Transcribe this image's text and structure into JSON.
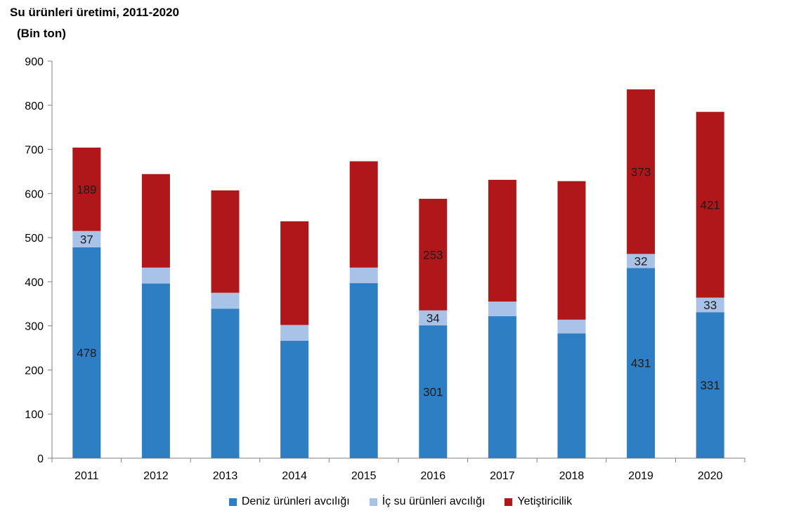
{
  "header": {
    "title": "Su ürünleri üretimi, 2011-2020",
    "subtitle": "(Bin ton)"
  },
  "chart_data": {
    "type": "bar",
    "stacked": true,
    "categories": [
      "2011",
      "2012",
      "2013",
      "2014",
      "2015",
      "2016",
      "2017",
      "2018",
      "2019",
      "2020"
    ],
    "series": [
      {
        "name": "Deniz ürünleri avcılığı",
        "color": "#2e7ec4",
        "values": [
          478,
          396,
          339,
          266,
          397,
          301,
          322,
          283,
          431,
          331
        ],
        "labels": [
          "478",
          "",
          "",
          "",
          "",
          "301",
          "",
          "",
          "431",
          "331"
        ]
      },
      {
        "name": "İç su ürünleri avcılığı",
        "color": "#a9c3e8",
        "values": [
          37,
          36,
          36,
          36,
          35,
          34,
          33,
          31,
          32,
          33
        ],
        "labels": [
          "37",
          "",
          "",
          "",
          "",
          "34",
          "",
          "",
          "32",
          "33"
        ]
      },
      {
        "name": "Yetiştiricilik",
        "color": "#b0171b",
        "values": [
          189,
          212,
          232,
          235,
          241,
          253,
          276,
          314,
          373,
          421
        ],
        "labels": [
          "189",
          "",
          "",
          "",
          "",
          "253",
          "",
          "",
          "373",
          "421"
        ]
      }
    ],
    "ylim": [
      0,
      900
    ],
    "yticks": [
      "0",
      "100",
      "200",
      "300",
      "400",
      "500",
      "600",
      "700",
      "800",
      "900"
    ],
    "grid": false,
    "legend": "bottom"
  }
}
